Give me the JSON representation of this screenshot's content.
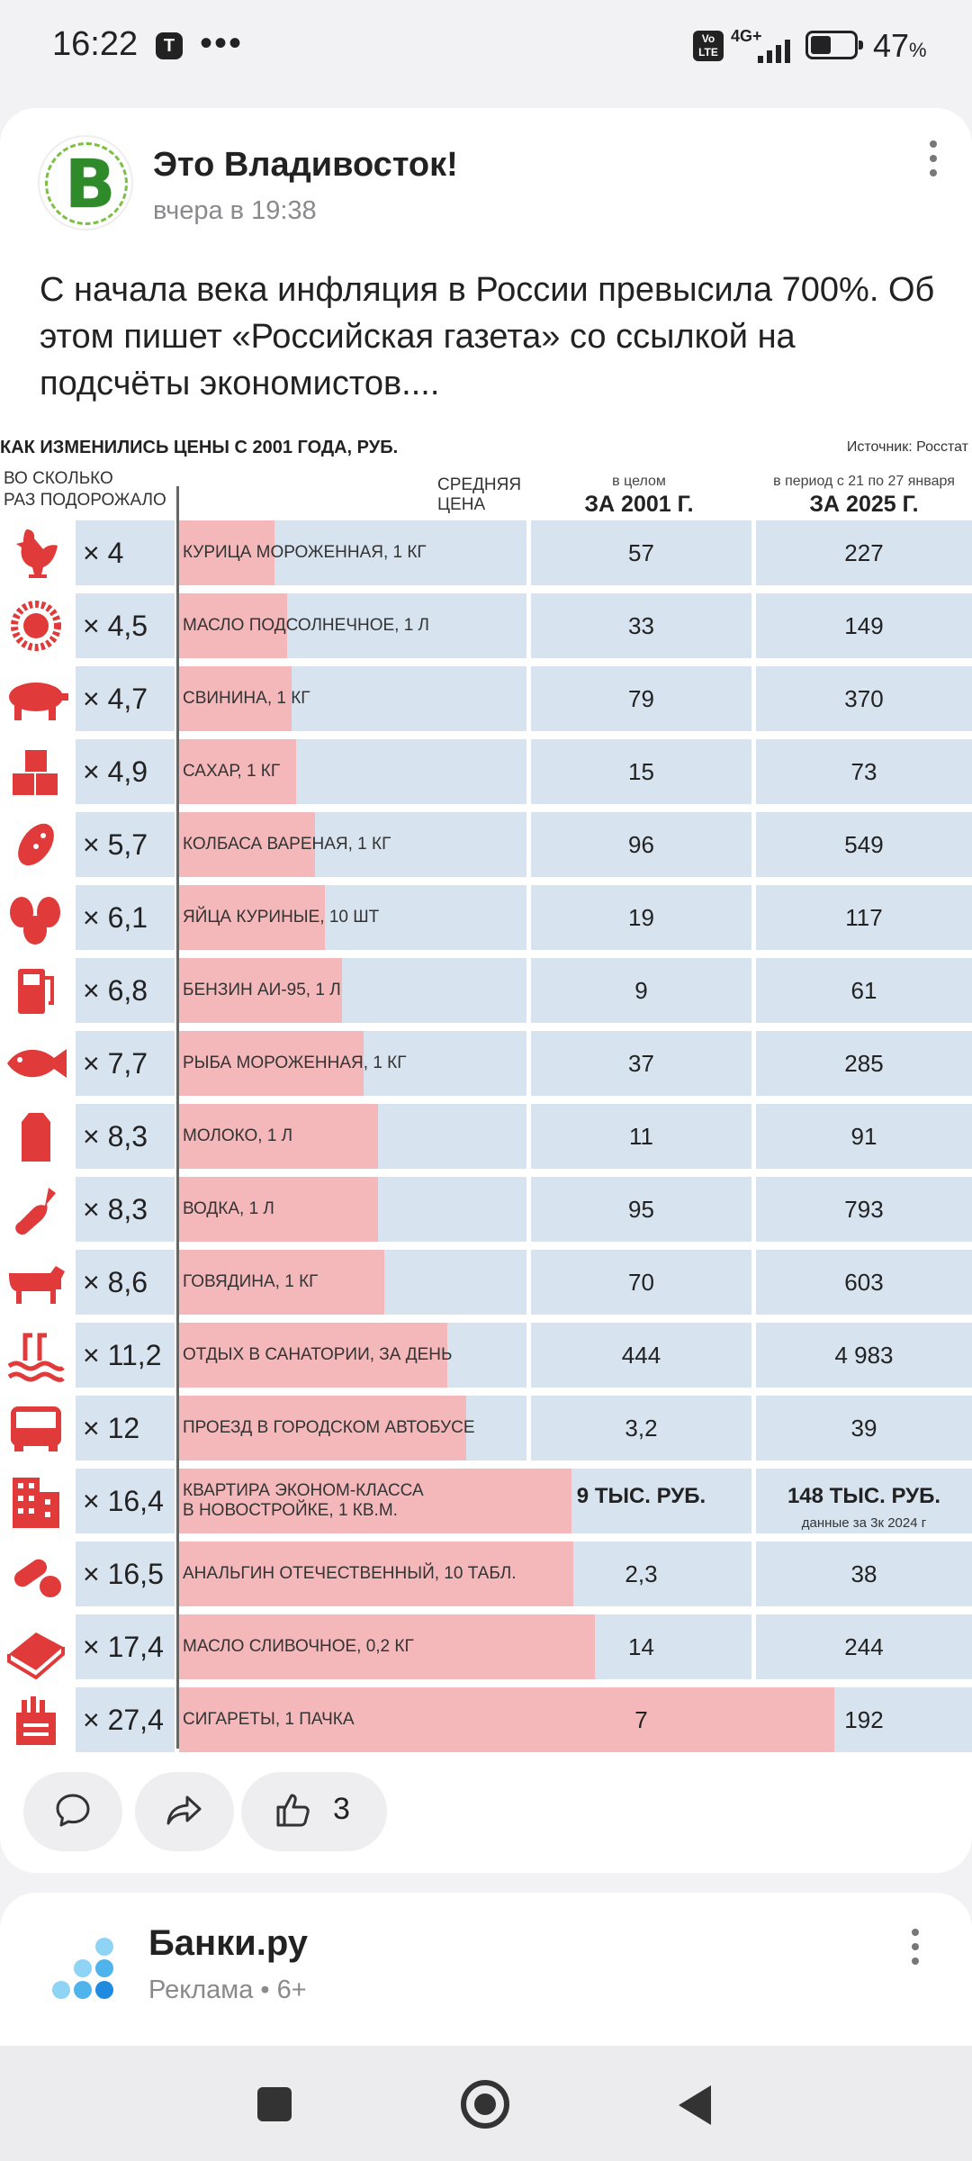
{
  "status_bar": {
    "time": "16:22",
    "network": "4G+",
    "volte": "Vo LTE",
    "battery_pct": "47",
    "battery_unit": "%",
    "battery_level": 0.47
  },
  "post": {
    "author": "Это Владивосток!",
    "date": "вчера в 19:38",
    "text": "С начала века инфляция в России превысила 700%. Об этом пишет «Российская газета» со ссылкой на подсчёты экономистов....",
    "avatar_letter": "В"
  },
  "infographic": {
    "title": "КАК ИЗМЕНИЛИСЬ ЦЕНЫ С 2001 ГОДА, РУБ.",
    "source": "Источник: Росстат",
    "col_times_line1": "ВО СКОЛЬКО",
    "col_times_line2": "РАЗ ПОДОРОЖАЛО",
    "col_avg_line1": "СРЕДНЯЯ",
    "col_avg_line2": "ЦЕНА",
    "col_2001_sub": "в целом",
    "col_2001_main": "ЗА 2001 Г.",
    "col_2025_sub": "в период с 21 по 27 января",
    "col_2025_main": "ЗА 2025 Г.",
    "max_multiplier": 27.4,
    "rows": [
      {
        "icon": "chicken-icon",
        "multiplier": "× 4",
        "factor": 4,
        "name": "КУРИЦА МОРОЖЕННАЯ, 1 КГ",
        "p2001": "57",
        "p2025": "227"
      },
      {
        "icon": "sunflower-icon",
        "multiplier": "× 4,5",
        "factor": 4.5,
        "name": "МАСЛО ПОДСОЛНЕЧНОЕ, 1 Л",
        "p2001": "33",
        "p2025": "149"
      },
      {
        "icon": "pig-icon",
        "multiplier": "× 4,7",
        "factor": 4.7,
        "name": "СВИНИНА, 1 КГ",
        "p2001": "79",
        "p2025": "370"
      },
      {
        "icon": "sugar-icon",
        "multiplier": "× 4,9",
        "factor": 4.9,
        "name": "САХАР, 1 КГ",
        "p2001": "15",
        "p2025": "73"
      },
      {
        "icon": "sausage-icon",
        "multiplier": "× 5,7",
        "factor": 5.7,
        "name": "КОЛБАСА ВАРЕНАЯ, 1 КГ",
        "p2001": "96",
        "p2025": "549"
      },
      {
        "icon": "eggs-icon",
        "multiplier": "× 6,1",
        "factor": 6.1,
        "name": "ЯЙЦА КУРИНЫЕ, 10 ШТ",
        "p2001": "19",
        "p2025": "117"
      },
      {
        "icon": "fuel-icon",
        "multiplier": "× 6,8",
        "factor": 6.8,
        "name": "БЕНЗИН АИ-95, 1 Л",
        "p2001": "9",
        "p2025": "61"
      },
      {
        "icon": "fish-icon",
        "multiplier": "× 7,7",
        "factor": 7.7,
        "name": "РЫБА МОРОЖЕННАЯ, 1 КГ",
        "p2001": "37",
        "p2025": "285"
      },
      {
        "icon": "milk-icon",
        "multiplier": "× 8,3",
        "factor": 8.3,
        "name": "МОЛОКО, 1 Л",
        "p2001": "11",
        "p2025": "91"
      },
      {
        "icon": "bottle-icon",
        "multiplier": "× 8,3",
        "factor": 8.3,
        "name": "ВОДКА, 1 Л",
        "p2001": "95",
        "p2025": "793"
      },
      {
        "icon": "cow-icon",
        "multiplier": "× 8,6",
        "factor": 8.6,
        "name": "ГОВЯДИНА, 1 КГ",
        "p2001": "70",
        "p2025": "603"
      },
      {
        "icon": "pool-icon",
        "multiplier": "× 11,2",
        "factor": 11.2,
        "name": "ОТДЫХ В САНАТОРИИ, ЗА ДЕНЬ",
        "p2001": "444",
        "p2025": "4 983"
      },
      {
        "icon": "bus-icon",
        "multiplier": "× 12",
        "factor": 12,
        "name": "ПРОЕЗД В ГОРОДСКОМ АВТОБУСЕ",
        "p2001": "3,2",
        "p2025": "39"
      },
      {
        "icon": "building-icon",
        "multiplier": "× 16,4",
        "factor": 16.4,
        "name_line1": "КВАРТИРА ЭКОНОМ-КЛАССА",
        "name_line2": "В НОВОСТРОЙКЕ, 1 КВ.М.",
        "p2001": "9 ТЫС. РУБ.",
        "p2025": "148 ТЫС. РУБ.",
        "note": "данные за 3к 2024 г"
      },
      {
        "icon": "pills-icon",
        "multiplier": "× 16,5",
        "factor": 16.5,
        "name": "АНАЛЬГИН ОТЕЧЕСТВЕННЫЙ, 10 ТАБЛ.",
        "p2001": "2,3",
        "p2025": "38"
      },
      {
        "icon": "butter-icon",
        "multiplier": "× 17,4",
        "factor": 17.4,
        "name": "МАСЛО СЛИВОЧНОЕ, 0,2 КГ",
        "p2001": "14",
        "p2025": "244"
      },
      {
        "icon": "cigarettes-icon",
        "multiplier": "× 27,4",
        "factor": 27.4,
        "name": "СИГАРЕТЫ, 1 ПАЧКА",
        "p2001": "7",
        "p2025": "192"
      }
    ]
  },
  "actions": {
    "likes": "3"
  },
  "ad": {
    "title": "Банки.ру",
    "subtitle": "Реклама • 6+"
  },
  "colors": {
    "row_bg": "#d7e3ef",
    "bar": "#f4b8bb",
    "icon_red": "#e03a3a"
  }
}
